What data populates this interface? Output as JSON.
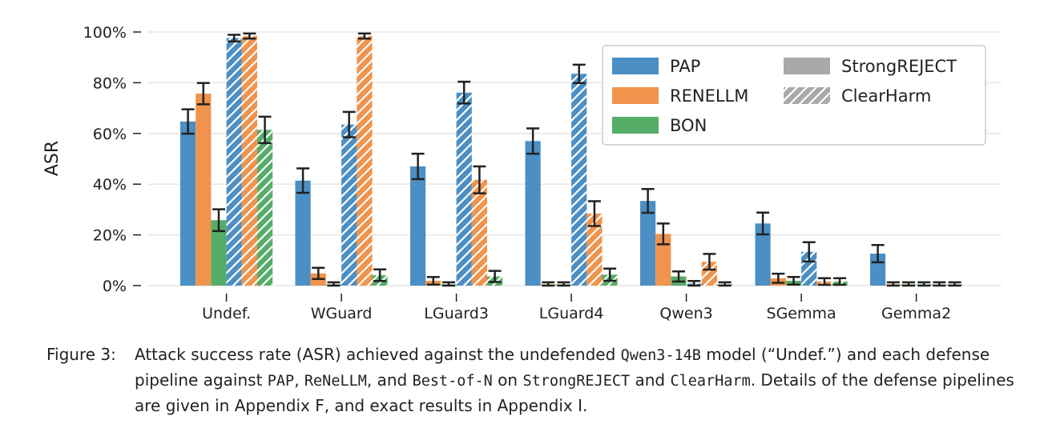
{
  "chart_data": {
    "type": "bar",
    "ylabel": "ASR",
    "ylim": [
      0,
      100
    ],
    "yticks": [
      "0%",
      "20%",
      "40%",
      "60%",
      "80%",
      "100%"
    ],
    "grid": true,
    "legend_position": "top-right",
    "categories": [
      "Undef.",
      "WGuard",
      "LGuard3",
      "LGuard4",
      "Qwen3",
      "SGemma",
      "Gemma2"
    ],
    "series": [
      {
        "name": "PAP",
        "dataset": "StrongREJECT",
        "color": "#4c8fc4",
        "hatch": false,
        "values": [
          64.7,
          41.4,
          47.0,
          57.0,
          33.4,
          24.5,
          12.6
        ],
        "errors": [
          4.8,
          4.8,
          5.0,
          5.0,
          4.7,
          4.3,
          3.4
        ]
      },
      {
        "name": "RENELLM",
        "dataset": "StrongREJECT",
        "color": "#f0944d",
        "hatch": false,
        "values": [
          75.7,
          4.8,
          1.9,
          0.5,
          20.4,
          2.9,
          0.5
        ],
        "errors": [
          4.2,
          2.2,
          1.5,
          0.8,
          4.1,
          1.8,
          0.8
        ]
      },
      {
        "name": "BON",
        "dataset": "StrongREJECT",
        "color": "#56ad68",
        "hatch": false,
        "values": [
          25.8,
          0.5,
          0.5,
          0.5,
          3.6,
          1.9,
          0.5
        ],
        "errors": [
          4.3,
          0.8,
          0.8,
          0.8,
          2.0,
          1.5,
          0.8
        ]
      },
      {
        "name": "PAP",
        "dataset": "ClearHarm",
        "color": "#4c8fc4",
        "hatch": true,
        "values": [
          97.6,
          63.5,
          76.1,
          83.5,
          0.8,
          13.3,
          0.5
        ],
        "errors": [
          1.3,
          5.0,
          4.3,
          3.6,
          1.0,
          3.8,
          0.8
        ]
      },
      {
        "name": "RENELLM",
        "dataset": "ClearHarm",
        "color": "#f0944d",
        "hatch": true,
        "values": [
          98.4,
          98.4,
          41.7,
          28.4,
          9.4,
          1.6,
          0.5
        ],
        "errors": [
          1.0,
          1.0,
          5.3,
          4.9,
          3.1,
          1.3,
          0.8
        ]
      },
      {
        "name": "BON",
        "dataset": "ClearHarm",
        "color": "#56ad68",
        "hatch": true,
        "values": [
          61.4,
          4.1,
          3.6,
          4.3,
          0.5,
          1.6,
          0.5
        ],
        "errors": [
          5.2,
          2.3,
          2.2,
          2.4,
          0.8,
          1.3,
          0.8
        ]
      }
    ],
    "legend": {
      "methods": [
        {
          "name": "PAP",
          "color": "#4c8fc4"
        },
        {
          "name": "RENELLM",
          "color": "#f0944d"
        },
        {
          "name": "BON",
          "color": "#56ad68"
        }
      ],
      "datasets": [
        {
          "name": "StrongREJECT",
          "hatch": false,
          "color": "#a9a9a9"
        },
        {
          "name": "ClearHarm",
          "hatch": true,
          "color": "#a9a9a9"
        }
      ]
    }
  },
  "caption": {
    "label": "Figure 3:",
    "t1": "Attack success rate (ASR) achieved against the undefended ",
    "m1": "Qwen3-14B",
    "t2": " model (“Undef.”) and each defense pipeline against ",
    "m2": "PAP",
    "t3": ", ",
    "m3": "ReNeLLM",
    "t4": ", and ",
    "m4": "Best-of-N",
    "t5": " on ",
    "m5": "StrongREJECT",
    "t6": " and ",
    "m6": "ClearHarm",
    "t7": ". Details of the defense pipelines are given in Appendix F, and exact results in Appendix I."
  }
}
